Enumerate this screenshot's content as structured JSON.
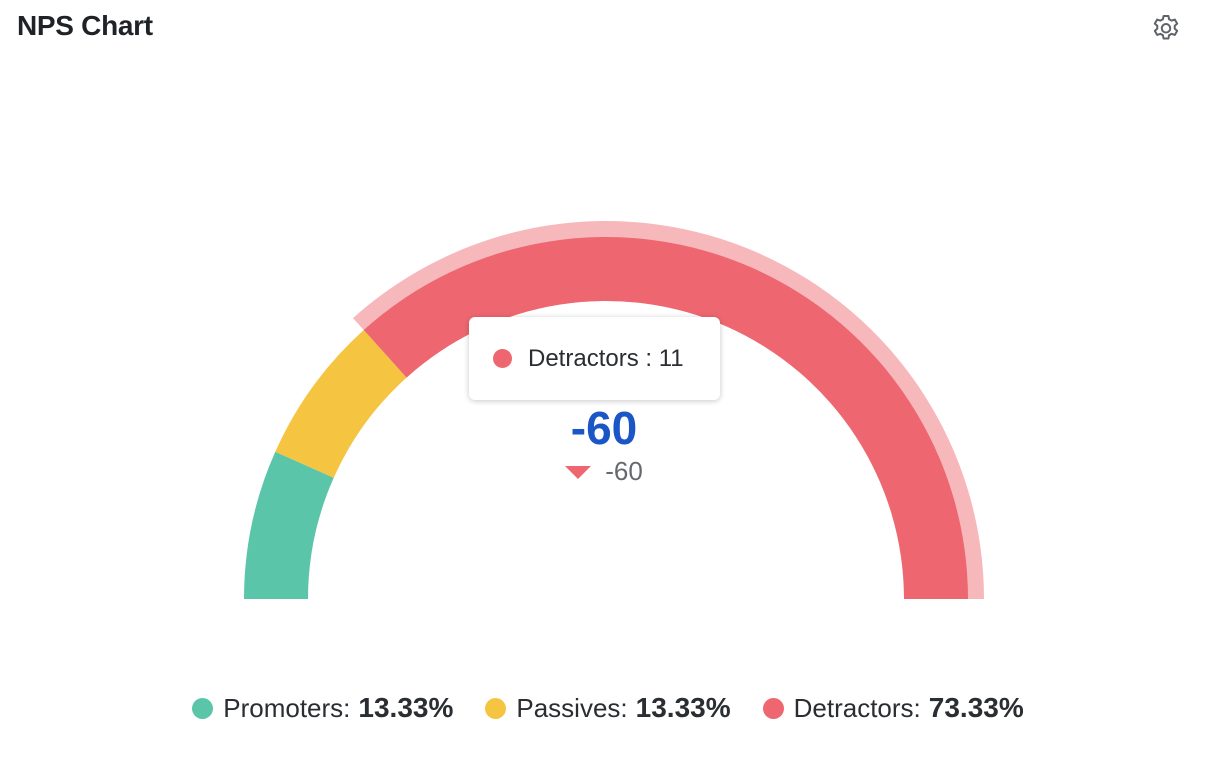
{
  "header": {
    "title": "NPS Chart",
    "settings_icon": "gear-icon"
  },
  "colors": {
    "promoters": "#5bc5aa",
    "passives": "#f5c542",
    "detractors": "#ee6770",
    "detractors_highlight": "#f7b8bc",
    "score": "#1a56c5"
  },
  "chart_data": {
    "type": "gauge",
    "score": "-60",
    "delta": "-60",
    "delta_direction": "down",
    "series": [
      {
        "name": "Promoters",
        "percent": 13.33,
        "percent_label": "13.33%"
      },
      {
        "name": "Passives",
        "percent": 13.33,
        "percent_label": "13.33%"
      },
      {
        "name": "Detractors",
        "percent": 73.33,
        "percent_label": "73.33%"
      }
    ],
    "hovered_series": "Detractors",
    "tooltip": {
      "label": "Detractors : 11"
    }
  }
}
